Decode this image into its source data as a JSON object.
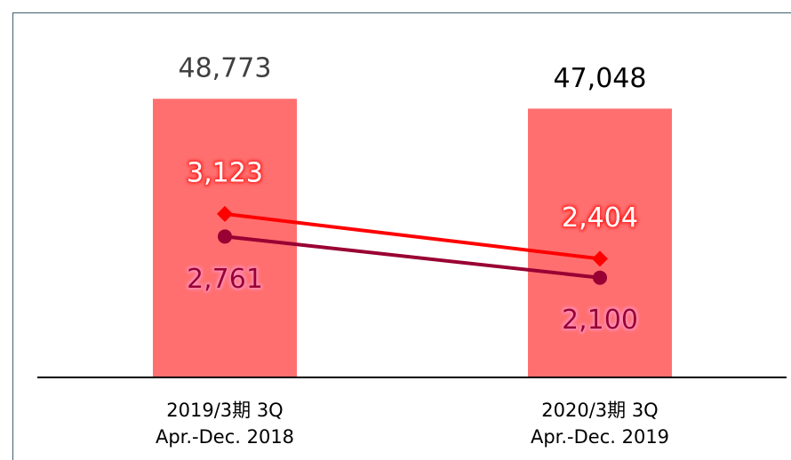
{
  "chart_data": {
    "type": "bar",
    "categories": [
      [
        "2019/3期 3Q",
        "Apr.-Dec. 2018"
      ],
      [
        "2020/3期 3Q",
        "Apr.-Dec. 2019"
      ]
    ],
    "values": [
      48773,
      47048
    ],
    "value_labels": [
      "48,773",
      "47,048"
    ],
    "color": "#ff6f6f",
    "ylim": [
      0,
      60000
    ],
    "y2lim": [
      500,
      6000
    ],
    "series": [
      {
        "type": "line",
        "axis": "y2",
        "color": "#ff0000",
        "marker": "diamond",
        "label_position": "above",
        "values": [
          3123,
          2404
        ],
        "value_labels": [
          "3,123",
          "2,404"
        ]
      },
      {
        "type": "line",
        "axis": "y2",
        "color": "#990033",
        "marker": "circle",
        "label_position": "below",
        "values": [
          2761,
          2100
        ],
        "value_labels": [
          "2,761",
          "2,100"
        ]
      }
    ]
  }
}
